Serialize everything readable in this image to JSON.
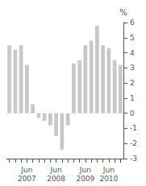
{
  "chart_data": {
    "type": "bar",
    "categories": [
      null,
      null,
      null,
      "Jun\n2007",
      null,
      null,
      null,
      null,
      "Jun\n2008",
      null,
      null,
      null,
      null,
      "Jun\n2009",
      null,
      null,
      null,
      "Jun\n2010",
      null,
      null
    ],
    "values": [
      4.5,
      4.2,
      4.5,
      3.2,
      0.6,
      -0.3,
      -0.5,
      -0.8,
      -1.5,
      -2.4,
      -0.8,
      3.3,
      3.5,
      4.5,
      4.8,
      5.8,
      4.5,
      4.3,
      3.5,
      3.2
    ],
    "color": "#c8c8c8",
    "ylabel": "%",
    "ylim": [
      -3,
      6
    ],
    "yticks": [
      -3,
      -2,
      -1,
      0,
      1,
      2,
      3,
      4,
      5,
      6
    ],
    "grid": false
  }
}
